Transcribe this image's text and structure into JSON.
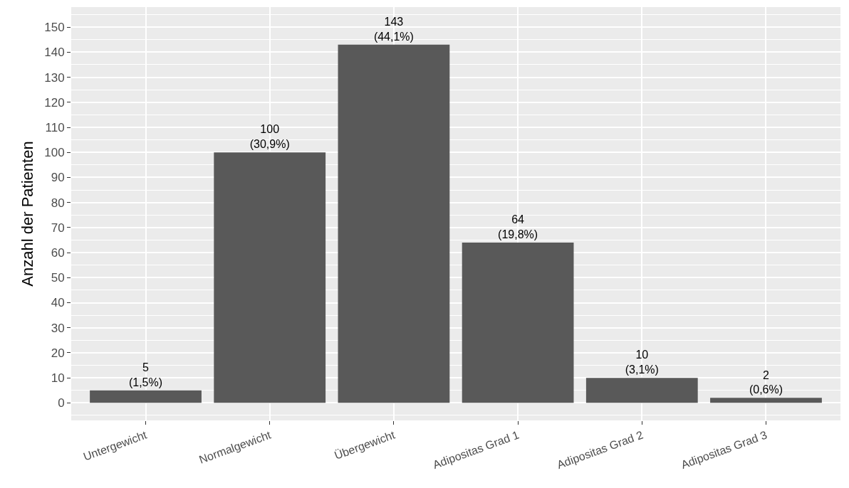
{
  "chart_data": {
    "type": "bar",
    "ylabel": "Anzahl der Patienten",
    "categories": [
      "Untergewicht",
      "Normalgewicht",
      "Übergewicht",
      "Adipositas Grad 1",
      "Adipositas Grad 2",
      "Adipositas Grad 3"
    ],
    "values": [
      5,
      100,
      143,
      64,
      10,
      2
    ],
    "value_labels": [
      "5\n(1,5%)",
      "100\n(30,9%)",
      "143\n(44,1%)",
      "64\n(19,8%)",
      "10\n(3,1%)",
      "2\n(0,6%)"
    ],
    "color": "#595959",
    "ylim": [
      -7,
      158
    ],
    "yticks": [
      0,
      10,
      20,
      30,
      40,
      50,
      60,
      70,
      80,
      90,
      100,
      110,
      120,
      130,
      140,
      150
    ],
    "grid": true
  }
}
